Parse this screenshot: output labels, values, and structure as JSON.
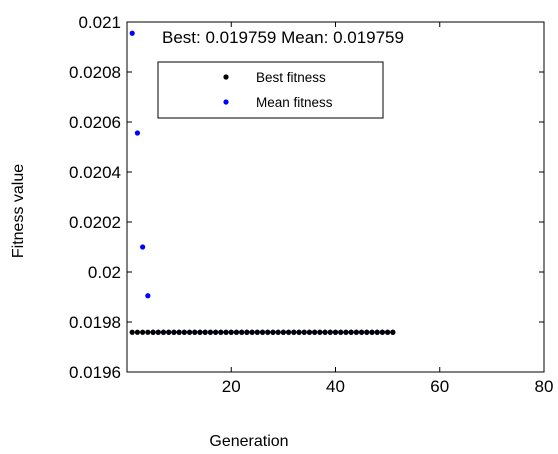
{
  "chart_data": {
    "type": "scatter",
    "title": "Best: 0.019759 Mean: 0.019759",
    "xlabel": "Generation",
    "ylabel": "Fitness value",
    "xlim": [
      0,
      80
    ],
    "ylim": [
      0.0196,
      0.021
    ],
    "x_ticks": [
      20,
      40,
      60,
      80
    ],
    "x_tick_labels": [
      "20",
      "40",
      "60",
      "80"
    ],
    "y_ticks": [
      0.0196,
      0.0198,
      0.02,
      0.0202,
      0.0204,
      0.0206,
      0.0208,
      0.021
    ],
    "y_tick_labels": [
      "0.0196",
      "0.0198",
      "0.02",
      "0.0202",
      "0.0204",
      "0.0206",
      "0.0208",
      "0.021"
    ],
    "grid": false,
    "legend_position": "top-left",
    "series": [
      {
        "name": "Best fitness",
        "color": "#000000",
        "marker": "dot",
        "x": [
          1,
          2,
          3,
          4,
          5,
          6,
          7,
          8,
          9,
          10,
          11,
          12,
          13,
          14,
          15,
          16,
          17,
          18,
          19,
          20,
          21,
          22,
          23,
          24,
          25,
          26,
          27,
          28,
          29,
          30,
          31,
          32,
          33,
          34,
          35,
          36,
          37,
          38,
          39,
          40,
          41,
          42,
          43,
          44,
          45,
          46,
          47,
          48,
          49,
          50,
          51
        ],
        "y": [
          0.019759,
          0.019759,
          0.019759,
          0.019759,
          0.019759,
          0.019759,
          0.019759,
          0.019759,
          0.019759,
          0.019759,
          0.019759,
          0.019759,
          0.019759,
          0.019759,
          0.019759,
          0.019759,
          0.019759,
          0.019759,
          0.019759,
          0.019759,
          0.019759,
          0.019759,
          0.019759,
          0.019759,
          0.019759,
          0.019759,
          0.019759,
          0.019759,
          0.019759,
          0.019759,
          0.019759,
          0.019759,
          0.019759,
          0.019759,
          0.019759,
          0.019759,
          0.019759,
          0.019759,
          0.019759,
          0.019759,
          0.019759,
          0.019759,
          0.019759,
          0.019759,
          0.019759,
          0.019759,
          0.019759,
          0.019759,
          0.019759,
          0.019759,
          0.019759
        ]
      },
      {
        "name": "Mean fitness",
        "color": "#0000ff",
        "marker": "dot",
        "x": [
          1,
          2,
          3,
          4,
          5,
          6,
          7,
          8,
          9,
          10,
          11,
          12,
          13,
          14,
          15,
          16,
          17,
          18,
          19,
          20,
          21,
          22,
          23,
          24,
          25,
          26,
          27,
          28,
          29,
          30,
          31,
          32,
          33,
          34,
          35,
          36,
          37,
          38,
          39,
          40,
          41,
          42,
          43,
          44,
          45,
          46,
          47,
          48,
          49,
          50,
          51
        ],
        "y": [
          0.020955,
          0.020556,
          0.0201,
          0.019905,
          0.019759,
          0.019759,
          0.019759,
          0.019759,
          0.019759,
          0.019759,
          0.019759,
          0.019759,
          0.019759,
          0.019759,
          0.019759,
          0.019759,
          0.019759,
          0.019759,
          0.019759,
          0.019759,
          0.019759,
          0.019759,
          0.019759,
          0.019759,
          0.019759,
          0.019759,
          0.019759,
          0.019759,
          0.019759,
          0.019759,
          0.019759,
          0.019759,
          0.019759,
          0.019759,
          0.019759,
          0.019759,
          0.019759,
          0.019759,
          0.019759,
          0.019759,
          0.019759,
          0.019759,
          0.019759,
          0.019759,
          0.019759,
          0.019759,
          0.019759,
          0.019759,
          0.019759,
          0.019759,
          0.019759
        ]
      }
    ]
  }
}
